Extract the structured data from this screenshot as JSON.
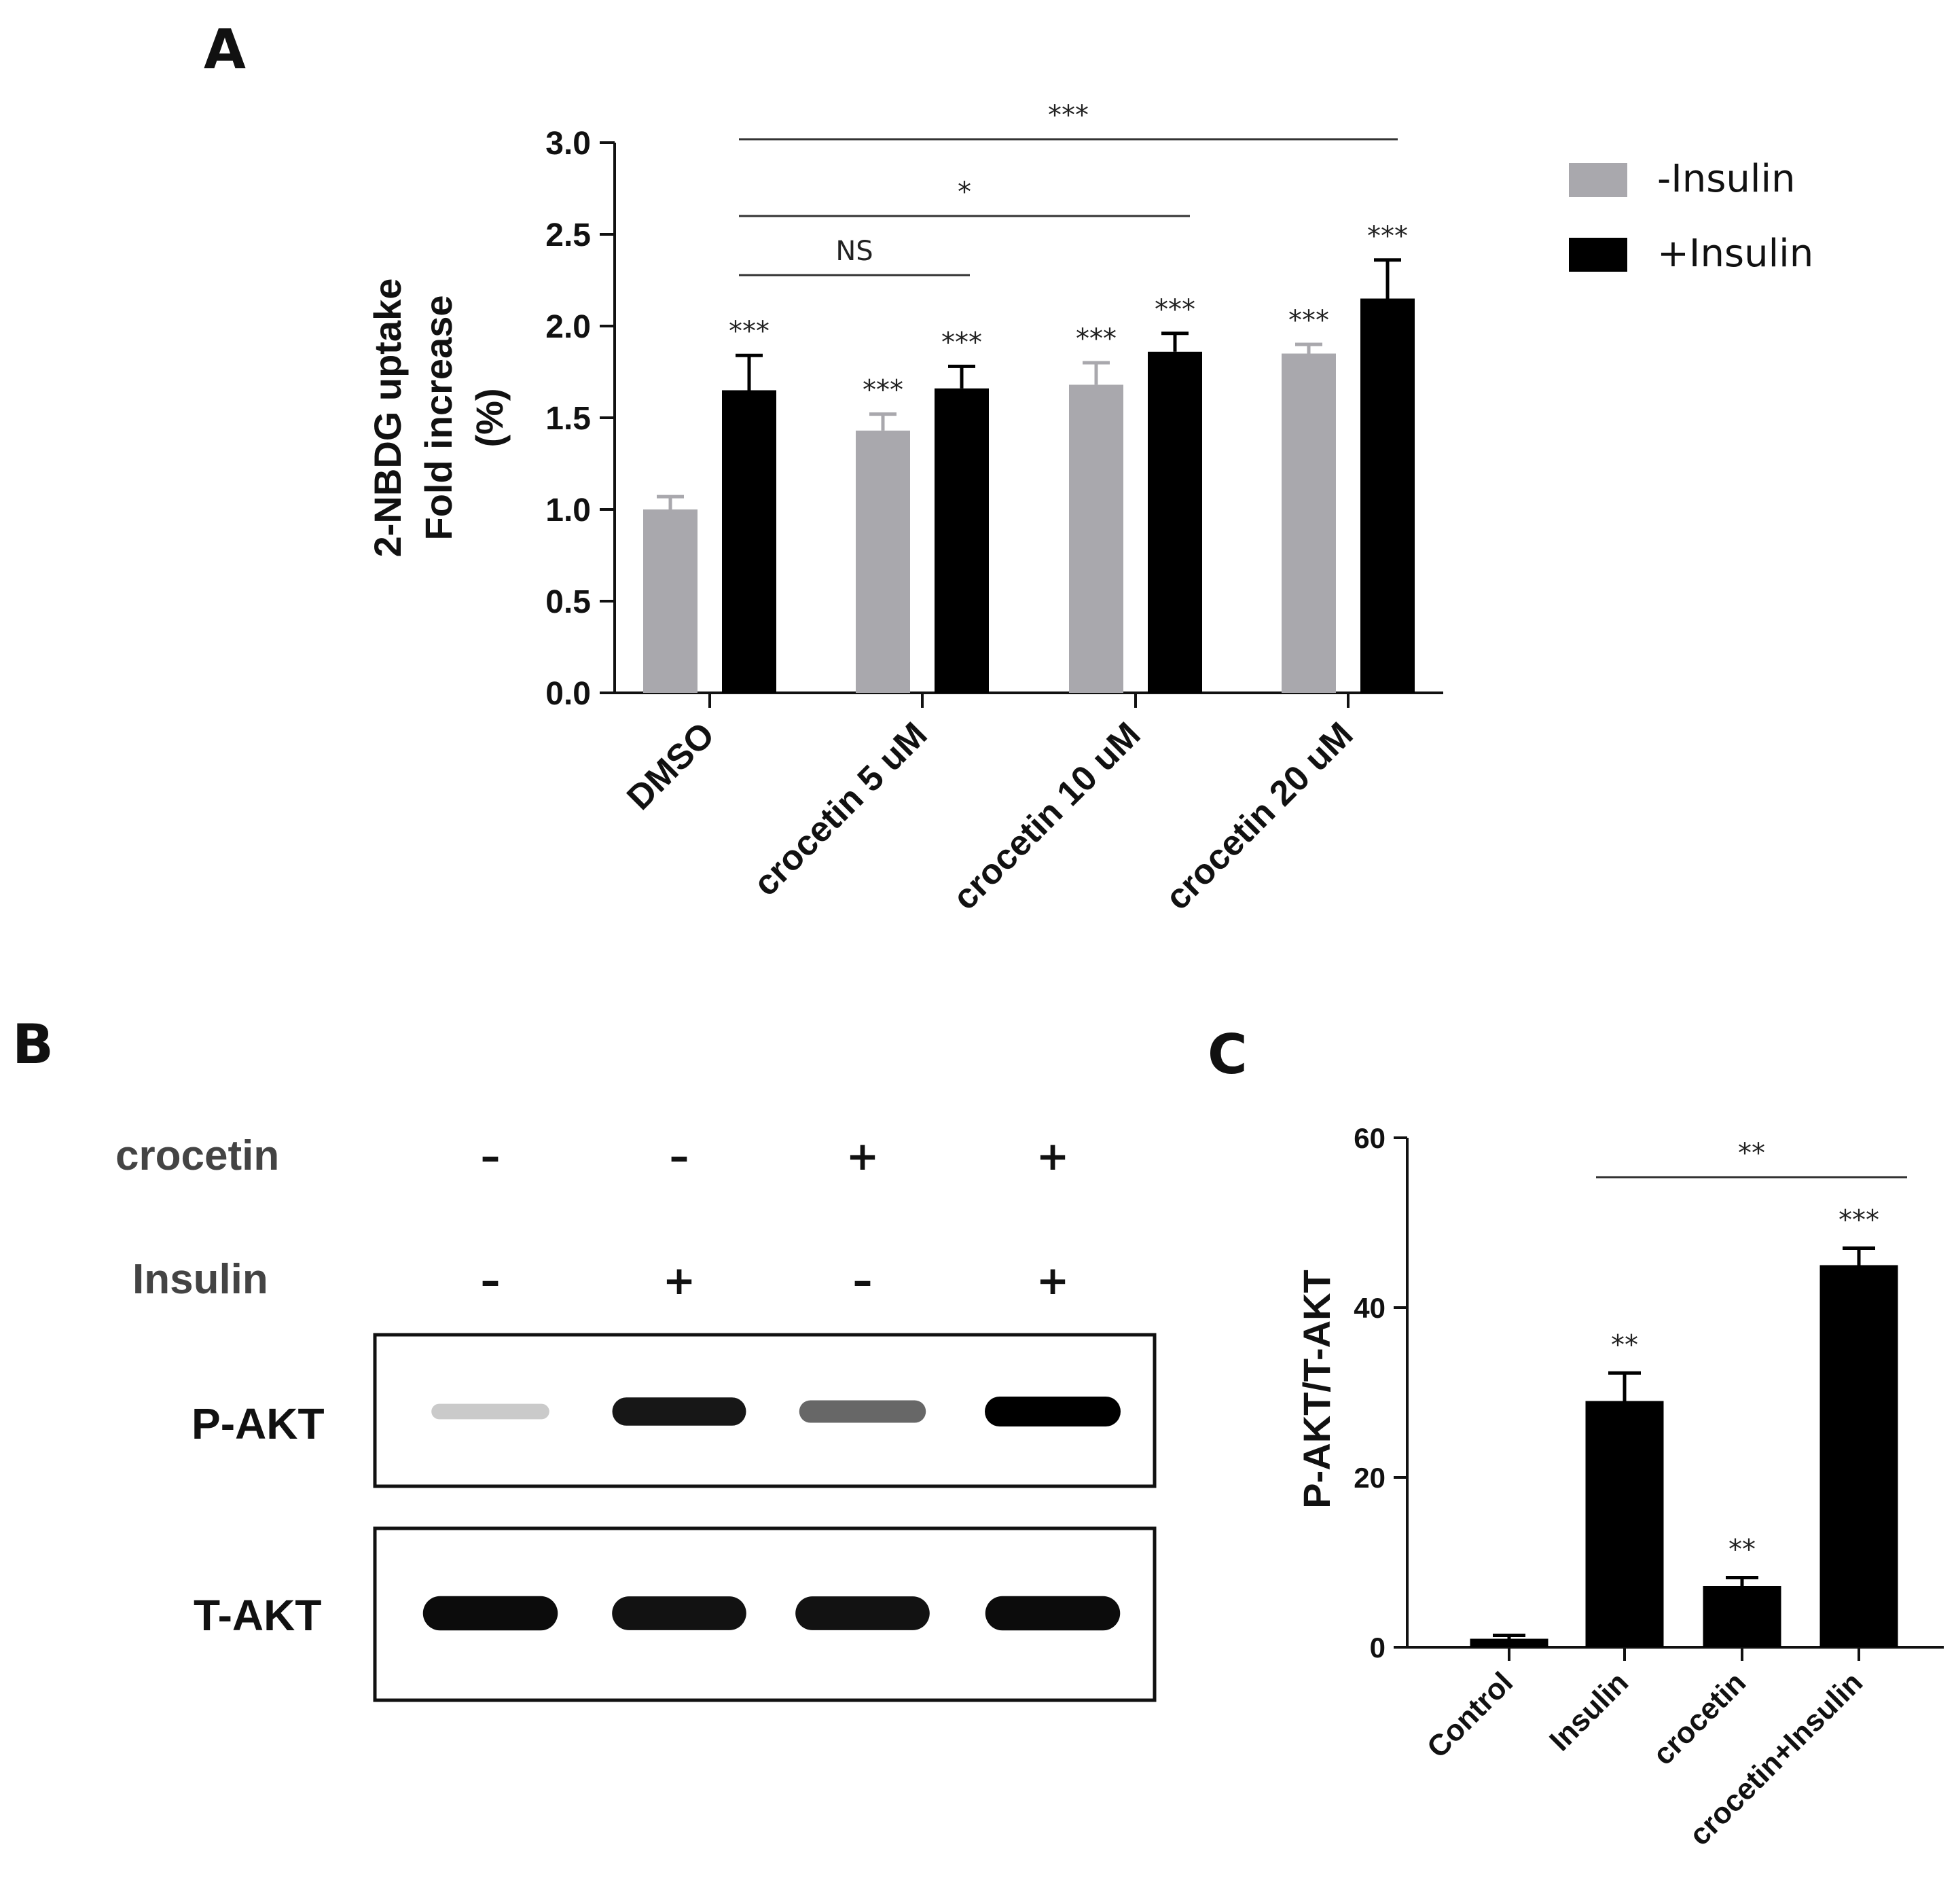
{
  "panels": {
    "a": "A",
    "b": "B",
    "c": "C"
  },
  "legend": [
    {
      "label": "-Insulin",
      "color": "#a9a8ad"
    },
    {
      "label": "+Insulin",
      "color": "#000000"
    }
  ],
  "chart_data": [
    {
      "panel": "A",
      "type": "bar",
      "ylabel_lines": [
        "2-NBDG uptake",
        "Fold increase",
        "(%)"
      ],
      "ylim": [
        0,
        3.0
      ],
      "yticks": [
        "0.0",
        "0.5",
        "1.0",
        "1.5",
        "2.0",
        "2.5",
        "3.0"
      ],
      "categories": [
        "DMSO",
        "crocetin 5 uM",
        "crocetin 10 uM",
        "crocetin 20 uM"
      ],
      "series": [
        {
          "name": "-Insulin",
          "color": "#a9a8ad",
          "values": [
            1.0,
            1.43,
            1.68,
            1.85
          ],
          "errors": [
            0.07,
            0.09,
            0.12,
            0.05
          ],
          "sig": [
            "",
            "***",
            "***",
            "***"
          ]
        },
        {
          "name": "+Insulin",
          "color": "#000000",
          "values": [
            1.65,
            1.66,
            1.86,
            2.15
          ],
          "errors": [
            0.19,
            0.12,
            0.1,
            0.21
          ],
          "sig": [
            "***",
            "***",
            "***",
            "***"
          ]
        }
      ],
      "comparisons": [
        {
          "label": "NS",
          "from": 0,
          "to": 1
        },
        {
          "label": "*",
          "from": 0,
          "to": 2
        },
        {
          "label": "***",
          "from": 0,
          "to": 3
        }
      ]
    },
    {
      "panel": "C",
      "type": "bar",
      "ylabel": "P-AKT/T-AKT",
      "ylim": [
        0,
        60
      ],
      "yticks": [
        "0",
        "20",
        "40",
        "60"
      ],
      "categories": [
        "Control",
        "Insulin",
        "crocetin",
        "crocetin+Insulin"
      ],
      "values": [
        1.0,
        29.0,
        7.2,
        45.0
      ],
      "errors": [
        0.4,
        3.3,
        1.0,
        2.0
      ],
      "sig": [
        "",
        "**",
        "**",
        "***"
      ],
      "color": "#000000",
      "comparisons": [
        {
          "label": "**",
          "from": 1,
          "to": 3
        }
      ]
    }
  ],
  "western_blot": {
    "treatments": [
      {
        "label": "crocetin",
        "signs": [
          "–",
          "–",
          "+",
          "+"
        ]
      },
      {
        "label": "Insulin",
        "signs": [
          "–",
          "+",
          "–",
          "+"
        ]
      }
    ],
    "rows": [
      {
        "label": "P-AKT",
        "intensities": [
          0.12,
          0.9,
          0.55,
          1.0
        ]
      },
      {
        "label": "T-AKT",
        "intensities": [
          0.95,
          0.92,
          0.92,
          0.95
        ]
      }
    ]
  }
}
